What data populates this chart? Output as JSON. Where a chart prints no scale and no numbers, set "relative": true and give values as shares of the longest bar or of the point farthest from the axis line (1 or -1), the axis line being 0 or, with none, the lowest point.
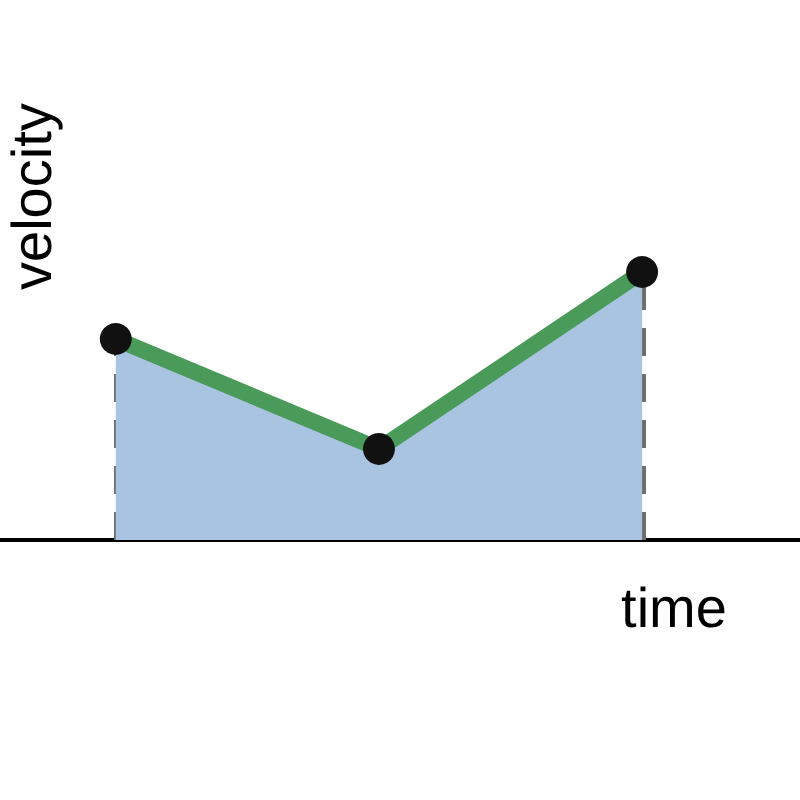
{
  "chart_data": {
    "type": "area",
    "xlabel": "time",
    "ylabel": "velocity",
    "relative": true,
    "categories": [
      null,
      null,
      null
    ],
    "series": [
      {
        "color": "#a9c4e0",
        "values": [
          0.75,
          0.34,
          1
        ]
      }
    ],
    "marker": "circle",
    "grid": false
  }
}
